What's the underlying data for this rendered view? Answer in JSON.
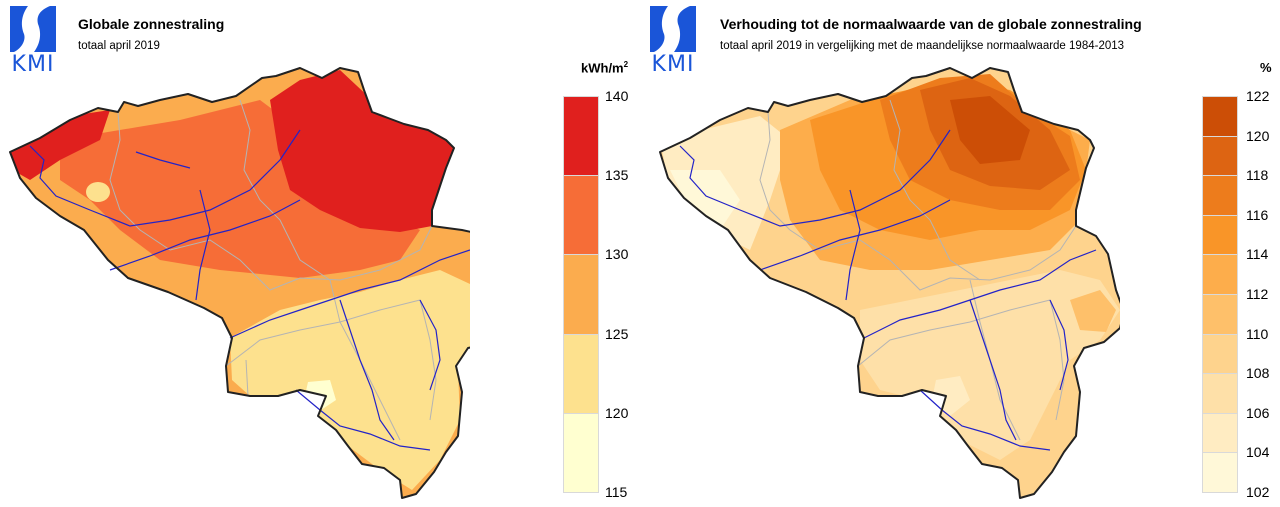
{
  "colors": {
    "logo_blue": "#1a55d8",
    "border": "#222222",
    "rivers": "#2323c8",
    "provinces": "#b4b4b4"
  },
  "panels": [
    {
      "logo_text": "KMI",
      "title": "Globale zonnestraling",
      "subtitle": "totaal april 2019",
      "unit": "kWh/m",
      "unit_sup": "2",
      "legend": {
        "bins": [
          {
            "from": 135,
            "to": 140,
            "color": "#e0201e"
          },
          {
            "from": 130,
            "to": 135,
            "color": "#f66d37"
          },
          {
            "from": 125,
            "to": 130,
            "color": "#fbac4e"
          },
          {
            "from": 120,
            "to": 125,
            "color": "#fde18e"
          },
          {
            "from": 115,
            "to": 120,
            "color": "#ffffd0"
          }
        ],
        "labels": [
          "140",
          "135",
          "130",
          "125",
          "120",
          "115"
        ]
      }
    },
    {
      "logo_text": "KMI",
      "title": "Verhouding tot de normaalwaarde van de globale zonnestraling",
      "subtitle": "totaal april 2019 in vergelijking met de maandelijkse normaalwaarde 1984-2013",
      "unit": "%",
      "unit_sup": "",
      "legend": {
        "bins": [
          {
            "from": 120,
            "to": 122,
            "color": "#cc4e06"
          },
          {
            "from": 118,
            "to": 120,
            "color": "#dd6412"
          },
          {
            "from": 116,
            "to": 118,
            "color": "#ed7c1c"
          },
          {
            "from": 114,
            "to": 116,
            "color": "#f99528"
          },
          {
            "from": 112,
            "to": 114,
            "color": "#fdad4b"
          },
          {
            "from": 110,
            "to": 112,
            "color": "#fec06a"
          },
          {
            "from": 108,
            "to": 110,
            "color": "#fed38d"
          },
          {
            "from": 106,
            "to": 108,
            "color": "#fee0a8"
          },
          {
            "from": 104,
            "to": 106,
            "color": "#ffecc2"
          },
          {
            "from": 102,
            "to": 104,
            "color": "#fff8d8"
          }
        ],
        "labels": [
          "122",
          "120",
          "118",
          "116",
          "114",
          "112",
          "110",
          "108",
          "106",
          "104",
          "102"
        ]
      }
    }
  ]
}
